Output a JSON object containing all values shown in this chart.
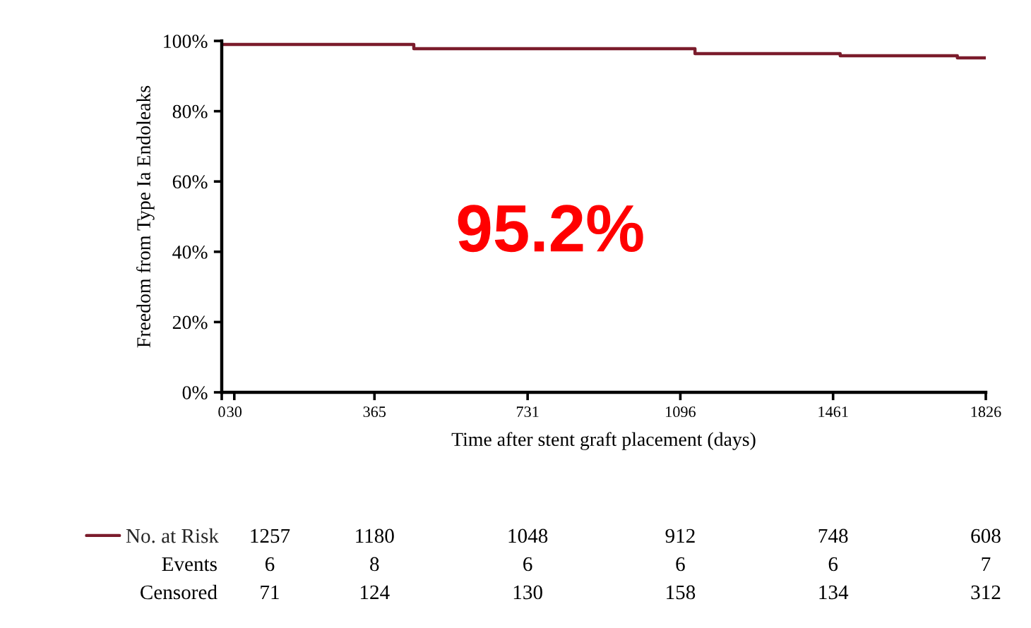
{
  "chart_data": {
    "type": "step",
    "xlabel": "Time after stent graft placement (days)",
    "ylabel": "Freedom from Type Ia Endoleaks",
    "series": [
      {
        "name": "No. at Risk",
        "color": "#7b1c2c",
        "x": [
          0,
          459,
          1131,
          1478,
          1758,
          1826
        ],
        "values": [
          99.0,
          97.8,
          96.4,
          95.8,
          95.2,
          95.2
        ]
      }
    ],
    "xlim": [
      0,
      1826
    ],
    "xticks": [
      0,
      30,
      365,
      731,
      1096,
      1461,
      1826
    ],
    "ylim": [
      0,
      100
    ],
    "yticks": [
      {
        "value": 0,
        "label": "0%"
      },
      {
        "value": 20,
        "label": "20%"
      },
      {
        "value": 40,
        "label": "40%"
      },
      {
        "value": 60,
        "label": "60%"
      },
      {
        "value": 80,
        "label": "80%"
      },
      {
        "value": 100,
        "label": "100%"
      }
    ],
    "grid": false,
    "legend": "bottom left",
    "annotations": [
      "95.2%",
      "1257",
      "1180",
      "1048",
      "912",
      "748",
      "608",
      "Events",
      "6",
      "8",
      "6",
      "6",
      "6",
      "7",
      "Censored",
      "71",
      "124",
      "130",
      "158",
      "134",
      "312"
    ]
  }
}
